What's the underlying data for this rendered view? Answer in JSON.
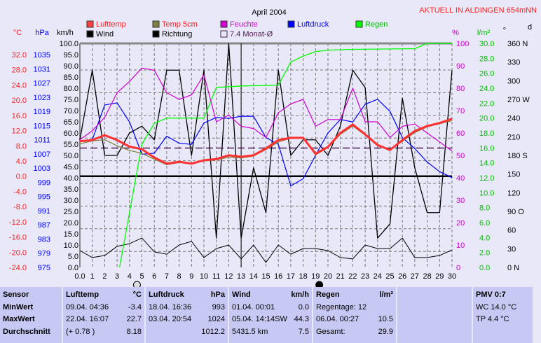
{
  "title": "April 2004",
  "station": "AKTUELL IN ALDINGEN 654mNN",
  "colors": {
    "temp": "#ff3030",
    "temp5": "#808040",
    "hum": "#d000d0",
    "press": "#0000ff",
    "rain": "#00ff00",
    "wind": "#000000",
    "dir": "#000000",
    "avg": "#502050"
  },
  "legend": [
    {
      "label": "Lufttemp",
      "color": "#ff4040",
      "text": "#ff2020"
    },
    {
      "label": "Temp 5cm",
      "color": "#808040",
      "text": "#ff2020"
    },
    {
      "label": "Feuchte",
      "color": "#d000d0",
      "text": "#d000d0"
    },
    {
      "label": "Luftdruck",
      "color": "#0000ff",
      "text": "#0000ff"
    },
    {
      "label": "Regen",
      "color": "#00ff00",
      "text": "#00c000"
    },
    {
      "label": "Wind",
      "color": "#000000",
      "text": "#000000"
    },
    {
      "label": "Richtung",
      "color": "#000000",
      "text": "#000000"
    },
    {
      "label": "7.4 Monat-Ø",
      "color": "none",
      "text": "#502050"
    }
  ],
  "chart_data": {
    "type": "line",
    "title": "April 2004",
    "x": {
      "min": 0,
      "max": 30,
      "ticks": [
        "0.0",
        "1",
        "2",
        "3",
        "4",
        "5",
        "6",
        "7",
        "8",
        "9",
        "10",
        "11",
        "12",
        "13",
        "14",
        "15",
        "16",
        "17",
        "18",
        "19",
        "20",
        "21",
        "22",
        "23",
        "24",
        "25",
        "26",
        "27",
        "28",
        "29",
        "30"
      ]
    },
    "axes": {
      "celsius": {
        "unit": "°C",
        "min": -24,
        "max": 32,
        "ticks": [
          "32.0",
          "28.0",
          "24.0",
          "20.0",
          "16.0",
          "12.0",
          "8.0",
          "4.0",
          "0.0",
          "-4.0",
          "-8.0",
          "-12.0",
          "-16.0",
          "-20.0",
          "-24.0"
        ]
      },
      "hpa": {
        "unit": "hPa",
        "min": 975,
        "max": 1035,
        "ticks": [
          "1035",
          "1031",
          "1027",
          "1023",
          "1019",
          "1015",
          "1011",
          "1007",
          "1003",
          "999",
          "995",
          "991",
          "987",
          "983",
          "979",
          "975"
        ]
      },
      "kmh": {
        "unit": "km/h",
        "min": 0,
        "max": 100,
        "ticks": [
          "100.0",
          "95.0",
          "90.0",
          "85.0",
          "80.0",
          "75.0",
          "70.0",
          "65.0",
          "60.0",
          "55.0",
          "50.0",
          "45.0",
          "40.0",
          "35.0",
          "30.0",
          "25.0",
          "20.0",
          "15.0",
          "10.0",
          "5.0",
          "0.0"
        ]
      },
      "percent": {
        "unit": "%",
        "min": 0,
        "max": 100,
        "ticks": [
          "100",
          "90",
          "80",
          "70",
          "60",
          "50",
          "40",
          "30",
          "20",
          "10",
          "0"
        ]
      },
      "rain": {
        "unit": "l/m²",
        "min": 0,
        "max": 30,
        "ticks": [
          "30.0",
          "28.0",
          "26.0",
          "24.0",
          "22.0",
          "20.0",
          "18.0",
          "16.0",
          "14.0",
          "12.0",
          "10.0",
          "8.0",
          "6.0",
          "4.0",
          "2.0",
          "0.0"
        ]
      },
      "degree": {
        "unit": "°",
        "min": 0,
        "max": 360,
        "ticks": [
          "360 N",
          "330",
          "300",
          "270 W",
          "240",
          "210",
          "180 S",
          "150",
          "120",
          "90 O",
          "60",
          "30",
          "0 N"
        ]
      }
    },
    "series": [
      {
        "name": "Lufttemp",
        "axis": "celsius",
        "values": [
          9.2,
          9.5,
          10.8,
          9.5,
          7.8,
          7.1,
          4.9,
          3.3,
          3.8,
          3.3,
          4.2,
          4.5,
          5.5,
          5.1,
          5.5,
          7.3,
          9.5,
          10.1,
          10.1,
          5.9,
          7.7,
          11.4,
          13.6,
          11.0,
          8.2,
          6.9,
          9.5,
          11.9,
          13.2,
          14.0,
          15.1
        ]
      },
      {
        "name": "Temp 5cm",
        "axis": "celsius",
        "values": [
          8.5,
          9.3,
          9.6,
          8.0,
          6.8,
          6.0,
          4.5,
          3.0,
          3.6,
          3.4,
          4.0,
          4.3,
          5.0,
          4.8,
          5.3,
          7.0,
          9.0,
          10.0,
          10.2,
          5.6,
          7.5,
          11.0,
          13.2,
          10.8,
          8.0,
          6.9,
          9.2,
          11.5,
          13.0,
          13.8,
          14.6
        ]
      },
      {
        "name": "Feuchte",
        "axis": "percent",
        "values": [
          57,
          61,
          67,
          78,
          83,
          89,
          88,
          78,
          75,
          77,
          86,
          65,
          68,
          63,
          62,
          58,
          69,
          73,
          75,
          63,
          66,
          66,
          80,
          65,
          65,
          58,
          63,
          64,
          60,
          56,
          52
        ]
      },
      {
        "name": "Luftdruck",
        "axis": "hpa",
        "values": [
          1010.6,
          1011,
          1020.8,
          1021.4,
          1016,
          1006.9,
          1007.2,
          1012,
          1010,
          1009.7,
          1015.7,
          1017.3,
          1017,
          1017.6,
          1017.6,
          1011.6,
          1009.7,
          998,
          1000,
          1006.6,
          1012.9,
          1016.7,
          1016,
          1021,
          1022.4,
          1019,
          1011.6,
          1008.5,
          1004.7,
          1002,
          1000.3
        ]
      },
      {
        "name": "Wind",
        "axis": "kmh",
        "values": [
          7.5,
          4.4,
          5.3,
          9.4,
          10.6,
          13.1,
          6.9,
          5.9,
          10,
          11.6,
          4.4,
          8.4,
          10,
          3.8,
          10,
          2.2,
          10,
          5.9,
          8.4,
          8.4,
          7.5,
          4.4,
          3.8,
          10,
          8.4,
          8.4,
          13.1,
          4.4,
          4.4,
          5.3,
          7.8
        ]
      },
      {
        "name": "Richtung",
        "axis": "degree",
        "values": [
          205,
          317,
          180,
          180,
          216,
          227,
          205,
          317,
          317,
          180,
          317,
          47,
          360,
          47,
          160,
          88,
          317,
          180,
          205,
          205,
          180,
          227,
          317,
          289,
          47,
          70,
          272,
          160,
          88,
          88,
          317
        ]
      },
      {
        "name": "Regen",
        "axis": "rain",
        "points": [
          [
            3.2,
            0
          ],
          [
            5,
            16.5
          ],
          [
            6,
            19.3
          ],
          [
            7,
            20
          ],
          [
            10,
            20
          ],
          [
            11,
            24.1
          ],
          [
            13,
            24.3
          ],
          [
            16,
            24.4
          ],
          [
            17,
            27.5
          ],
          [
            18,
            28.3
          ],
          [
            19,
            28.9
          ],
          [
            20,
            29.1
          ],
          [
            22,
            29.2
          ],
          [
            27,
            29.3
          ],
          [
            28,
            30
          ],
          [
            30,
            30
          ]
        ]
      }
    ],
    "reference_lines": [
      {
        "name": "7.4 Monat-Ø",
        "axis": "celsius",
        "value": 7.4
      },
      {
        "name": "Frost",
        "axis": "celsius",
        "value": 0
      }
    ],
    "moon_phases": [
      {
        "day": 4.6,
        "icon": "full-moon-icon"
      },
      {
        "day": 19.3,
        "icon": "new-moon-icon"
      }
    ]
  },
  "table": {
    "sensor": {
      "header": "Sensor",
      "rows": [
        "MinWert",
        "MaxWert",
        "Durchschnitt"
      ]
    },
    "lufttemp": {
      "header": "Lufttemp",
      "unit": "°C",
      "rows": [
        [
          "09.04.  04:36",
          "-3.4"
        ],
        [
          "22.04.  16:07",
          "22.7"
        ],
        [
          "(+ 0.78 )",
          "8.18"
        ]
      ]
    },
    "luftdruck": {
      "header": "Luftdruck",
      "unit": "hPa",
      "rows": [
        [
          "18.04.  16:36",
          "993"
        ],
        [
          "03.04.  20:54",
          "1024"
        ],
        [
          "",
          "1012.2"
        ]
      ]
    },
    "wind": {
      "header": "Wind",
      "unit": "km/h",
      "rows": [
        [
          "01.04.  00:01",
          "0.0"
        ],
        [
          "05.04.  14:14SW",
          "44.3"
        ],
        [
          "5431.5 km",
          "7.5"
        ]
      ]
    },
    "regen": {
      "header": "Regen",
      "unit": "l/m²",
      "rows": [
        [
          "Regentage: 12",
          ""
        ],
        [
          "06.04.  00:27",
          "10.5"
        ],
        [
          "Gesamt:",
          "29.9"
        ]
      ]
    },
    "pmv": {
      "header": "PMV 0:7",
      "rows": [
        "WC 14.0 °C",
        "TP 4.4 °C"
      ]
    }
  },
  "right_edge_label": "d"
}
